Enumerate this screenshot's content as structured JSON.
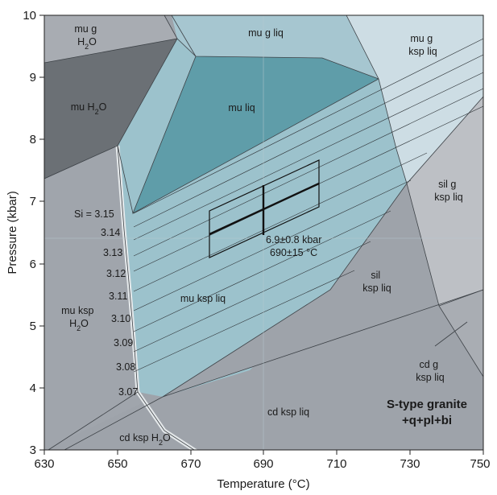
{
  "chart_data": {
    "type": "diagram",
    "xlabel": "Temperature (°C)",
    "ylabel": "Pressure (kbar)",
    "xlim": [
      630,
      750
    ],
    "ylim": [
      3,
      10
    ],
    "x_ticks": [
      "630",
      "650",
      "670",
      "690",
      "710",
      "730",
      "750"
    ],
    "y_ticks": [
      "3",
      "4",
      "5",
      "6",
      "7",
      "8",
      "9",
      "10"
    ],
    "fields": {
      "mu_g_h2o": [
        "mu g",
        "H2O"
      ],
      "mu_h2o": "mu H2O",
      "mu_g_liq": "mu g liq",
      "mu_g_ksp_liq": [
        "mu g",
        "ksp liq"
      ],
      "mu_liq": "mu liq",
      "sil_g_ksp_liq": [
        "sil g",
        "ksp liq"
      ],
      "sil_ksp_liq": [
        "sil",
        "ksp liq"
      ],
      "mu_ksp_liq": "mu ksp liq",
      "mu_ksp_h2o": [
        "mu ksp",
        "H2O"
      ],
      "cd_g_ksp_liq": [
        "cd g",
        "ksp liq"
      ],
      "cd_ksp_liq": "cd ksp liq",
      "cd_ksp_h2o": "cd ksp H2O"
    },
    "si_isopleths": [
      {
        "label": "Si = 3.15",
        "value": 3.15
      },
      {
        "label": "3.14",
        "value": 3.14
      },
      {
        "label": "3.13",
        "value": 3.13
      },
      {
        "label": "3.12",
        "value": 3.12
      },
      {
        "label": "3.11",
        "value": 3.11
      },
      {
        "label": "3.10",
        "value": 3.1
      },
      {
        "label": "3.09",
        "value": 3.09
      },
      {
        "label": "3.08",
        "value": 3.08
      },
      {
        "label": "3.07",
        "value": 3.07
      }
    ],
    "estimate": {
      "T": 690,
      "T_err": 15,
      "P": 6.9,
      "P_err": 0.8,
      "pressure_label": "6.9±0.8 kbar",
      "temperature_label": "690±15 °C"
    },
    "rock": {
      "line1": "S-type granite",
      "line2": "+q+pl+bi"
    },
    "colors": {
      "grey_light": "#a3a7ad",
      "grey_mid": "#9aa0a8",
      "grey_dark": "#6b7075",
      "blue_pale": "#c6d9e1",
      "blue_mid": "#95bcc8",
      "blue_dark": "#5f9da9",
      "grey_right": "#b8bcc1"
    }
  }
}
